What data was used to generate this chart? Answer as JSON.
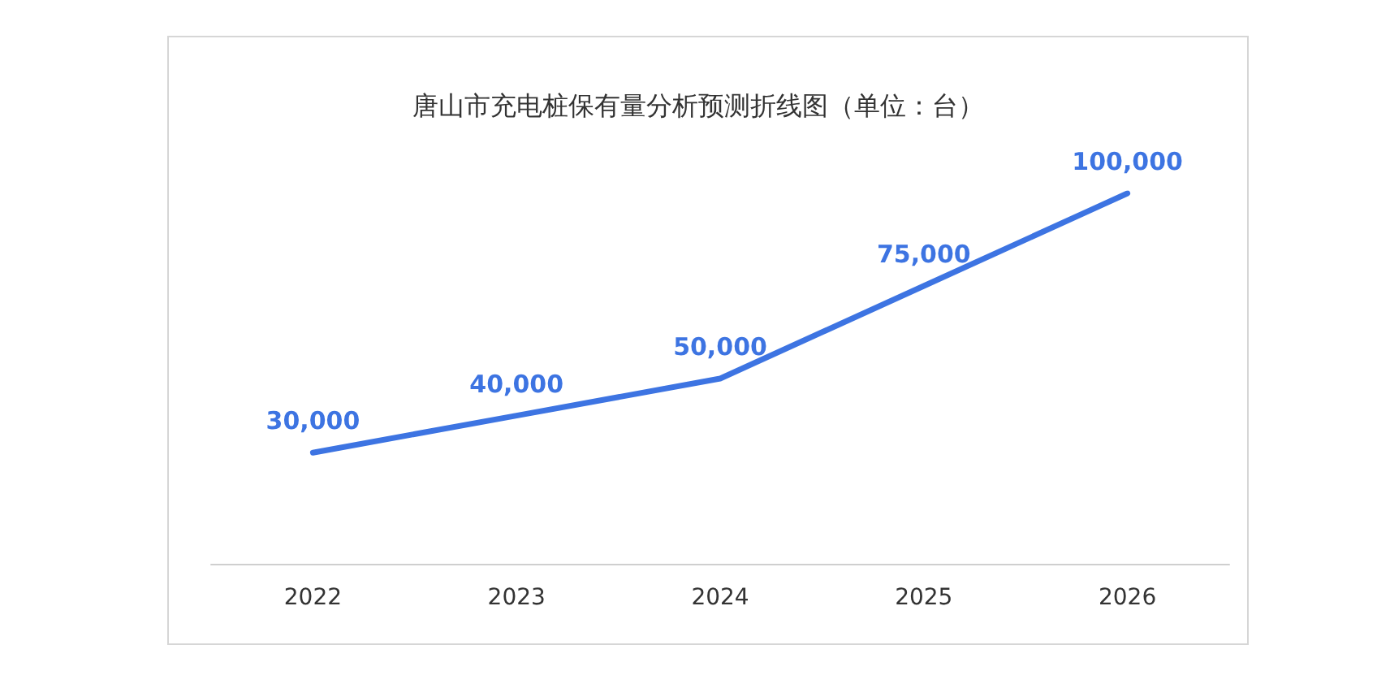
{
  "chart_data": {
    "type": "line",
    "title": "唐山市充电桩保有量分析预测折线图（单位：台）",
    "categories": [
      "2022",
      "2023",
      "2024",
      "2025",
      "2026"
    ],
    "series": [
      {
        "color": "#3d74e2",
        "values": [
          30000,
          40000,
          50000,
          75000,
          100000
        ],
        "value_labels": [
          "30,000",
          "40,000",
          "50,000",
          "75,000",
          "100,000"
        ]
      }
    ],
    "marker": "none",
    "line_style": "solid"
  }
}
